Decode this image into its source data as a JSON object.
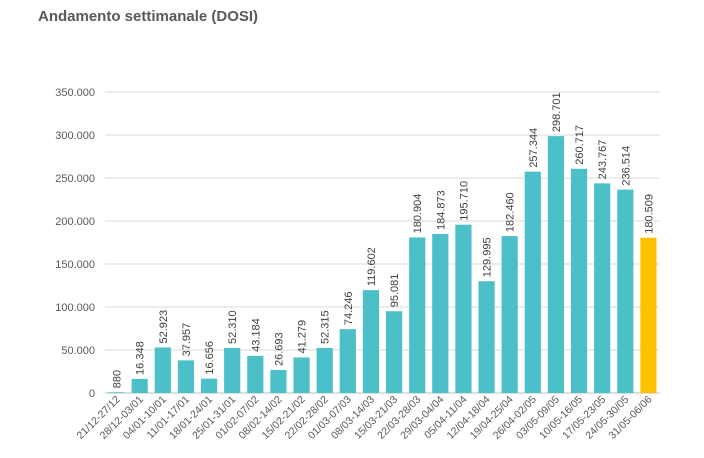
{
  "chart_data": {
    "type": "bar",
    "title": "Andamento settimanale (DOSI)",
    "categories": [
      "21/12-27/12",
      "28/12-03/01",
      "04/01-10/01",
      "11/01-17/01",
      "18/01-24/01",
      "25/01-31/01",
      "01/02-07/02",
      "08/02-14/02",
      "15/02-21/02",
      "22/02-28/02",
      "01/03-07/03",
      "08/03-14/03",
      "15/03-21/03",
      "22/03-28/03",
      "29/03-04/04",
      "05/04-11/04",
      "12/04-18/04",
      "19/04-25/04",
      "26/04-02/05",
      "03/05-09/05",
      "10/05-16/05",
      "17/05-23/05",
      "24/05-30/05",
      "31/05-06/06"
    ],
    "values": [
      880,
      16348,
      52923,
      37957,
      16656,
      52310,
      43184,
      26693,
      41279,
      52315,
      74246,
      119602,
      95081,
      180904,
      184873,
      195710,
      129995,
      182460,
      257344,
      298701,
      260717,
      243767,
      236514,
      180509
    ],
    "data_labels": [
      "880",
      "16.348",
      "52.923",
      "37.957",
      "16.656",
      "52.310",
      "43.184",
      "26.693",
      "41.279",
      "52.315",
      "74.246",
      "119.602",
      "95.081",
      "180.904",
      "184.873",
      "195.710",
      "129.995",
      "182.460",
      "257.344",
      "298.701",
      "260.717",
      "243.767",
      "236.514",
      "180.509"
    ],
    "y_ticks": [
      0,
      50000,
      100000,
      150000,
      200000,
      250000,
      300000,
      350000
    ],
    "y_tick_labels": [
      "0",
      "50.000",
      "100.000",
      "150.000",
      "200.000",
      "250.000",
      "300.000",
      "350.000"
    ],
    "ylim": [
      0,
      350000
    ],
    "xlabel": "",
    "ylabel": "",
    "grid": true,
    "legend": "none",
    "colors": {
      "bar": "#4BC0C8",
      "highlight": "#FFC000",
      "grid": "#D9D9D9",
      "axis": "#BFBFBF"
    },
    "highlight_index": 23
  }
}
